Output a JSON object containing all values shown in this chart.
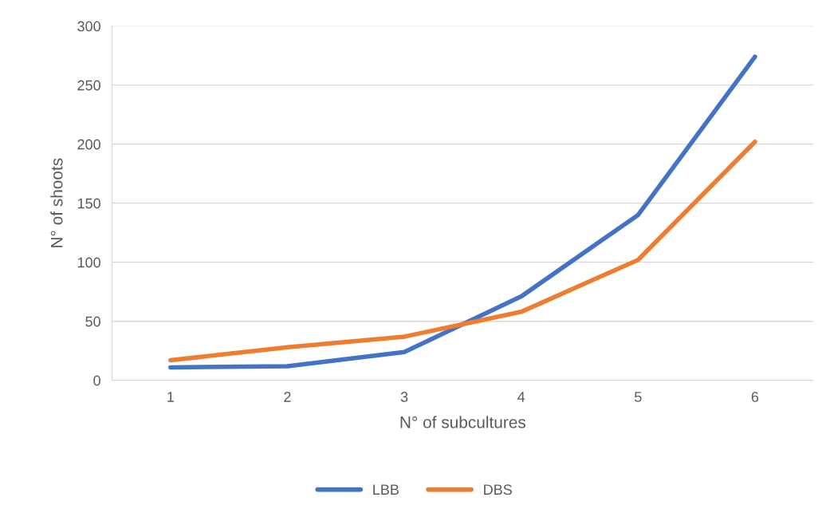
{
  "chart_data": {
    "type": "line",
    "xlabel": "N° of subcultures",
    "ylabel": "N° of shoots",
    "categories": [
      "1",
      "2",
      "3",
      "4",
      "5",
      "6"
    ],
    "series": [
      {
        "name": "LBB",
        "color": "#4472c4",
        "values": [
          11,
          12,
          24,
          71,
          140,
          274
        ]
      },
      {
        "name": "DBS",
        "color": "#ed7d31",
        "values": [
          17,
          28,
          37,
          58,
          102,
          202
        ]
      }
    ],
    "ylim": [
      0,
      300
    ],
    "yticks": [
      0,
      50,
      100,
      150,
      200,
      250,
      300
    ],
    "grid": "y",
    "legend": "bottom",
    "marker": "none",
    "line_style": "solid"
  }
}
